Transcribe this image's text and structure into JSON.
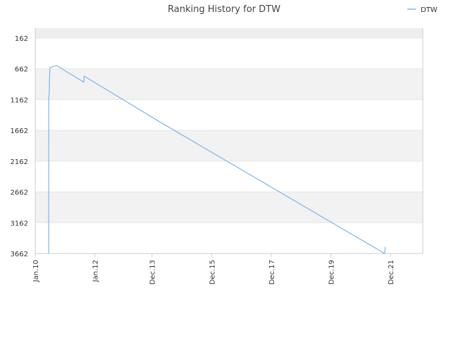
{
  "chart_data": {
    "type": "line",
    "title": "Ranking History for DTW",
    "legend": {
      "position": "top-right",
      "entries": [
        "DTW"
      ]
    },
    "colors": {
      "series": "#7cb5ec",
      "band": "#f2f2f2",
      "plot_header": "#eeeeee",
      "grid": "#e6e6e6",
      "axis": "#cccccc"
    },
    "grid": true,
    "ylim": [
      162,
      3662
    ],
    "y_reversed": true,
    "y_ticks": [
      "162",
      "662",
      "1162",
      "1662",
      "2162",
      "2662",
      "3162",
      "3662"
    ],
    "x_ticks": [
      "Jan.10",
      "Jan.12",
      "Dec.13",
      "Dec.15",
      "Dec.17",
      "Dec.19",
      "Dec.21"
    ],
    "x_tick_dates": [
      "2010-01-01",
      "2012-01-01",
      "2013-12-01",
      "2015-12-01",
      "2017-12-01",
      "2019-12-01",
      "2021-12-01"
    ],
    "xlim": [
      "2010-01-01",
      "2022-12-31"
    ],
    "series": [
      {
        "name": "DTW",
        "points": [
          {
            "x": "2010-06-15",
            "y": 3662
          },
          {
            "x": "2010-06-16",
            "y": 1150
          },
          {
            "x": "2010-06-22",
            "y": 1040
          },
          {
            "x": "2010-06-25",
            "y": 800
          },
          {
            "x": "2010-07-01",
            "y": 640
          },
          {
            "x": "2010-09-20",
            "y": 610
          },
          {
            "x": "2011-08-20",
            "y": 880
          },
          {
            "x": "2011-08-22",
            "y": 780
          },
          {
            "x": "2014-03-01",
            "y": 1520
          },
          {
            "x": "2021-09-20",
            "y": 3662
          },
          {
            "x": "2021-09-25",
            "y": 3555
          }
        ]
      }
    ]
  }
}
